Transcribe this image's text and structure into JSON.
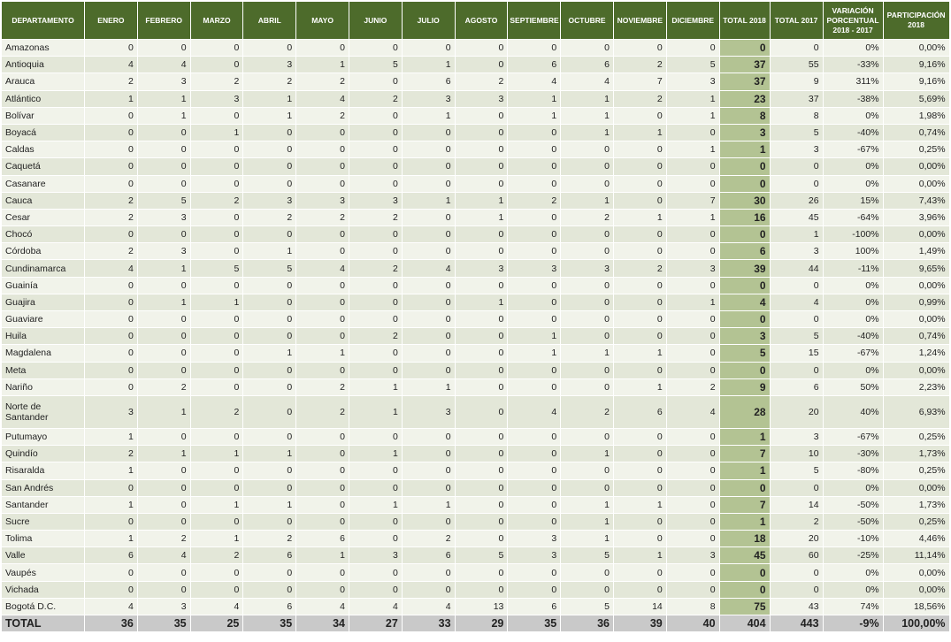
{
  "table": {
    "header": [
      "DEPARTAMENTO",
      "ENERO",
      "FEBRERO",
      "MARZO",
      "ABRIL",
      "MAYO",
      "JUNIO",
      "JULIO",
      "AGOSTO",
      "SEPTIEMBRE",
      "OCTUBRE",
      "NOVIEMBRE",
      "DICIEMBRE",
      "TOTAL 2018",
      "TOTAL 2017",
      "VARIACIÓN PORCENTUAL 2018 - 2017",
      "PARTICIPACIÓN 2018"
    ],
    "rows": [
      [
        "Amazonas",
        "0",
        "0",
        "0",
        "0",
        "0",
        "0",
        "0",
        "0",
        "0",
        "0",
        "0",
        "0",
        "0",
        "0",
        "0%",
        "0,00%"
      ],
      [
        "Antioquia",
        "4",
        "4",
        "0",
        "3",
        "1",
        "5",
        "1",
        "0",
        "6",
        "6",
        "2",
        "5",
        "37",
        "55",
        "-33%",
        "9,16%"
      ],
      [
        "Arauca",
        "2",
        "3",
        "2",
        "2",
        "2",
        "0",
        "6",
        "2",
        "4",
        "4",
        "7",
        "3",
        "37",
        "9",
        "311%",
        "9,16%"
      ],
      [
        "Atlántico",
        "1",
        "1",
        "3",
        "1",
        "4",
        "2",
        "3",
        "3",
        "1",
        "1",
        "2",
        "1",
        "23",
        "37",
        "-38%",
        "5,69%"
      ],
      [
        "Bolívar",
        "0",
        "1",
        "0",
        "1",
        "2",
        "0",
        "1",
        "0",
        "1",
        "1",
        "0",
        "1",
        "8",
        "8",
        "0%",
        "1,98%"
      ],
      [
        "Boyacá",
        "0",
        "0",
        "1",
        "0",
        "0",
        "0",
        "0",
        "0",
        "0",
        "1",
        "1",
        "0",
        "3",
        "5",
        "-40%",
        "0,74%"
      ],
      [
        "Caldas",
        "0",
        "0",
        "0",
        "0",
        "0",
        "0",
        "0",
        "0",
        "0",
        "0",
        "0",
        "1",
        "1",
        "3",
        "-67%",
        "0,25%"
      ],
      [
        "Caquetá",
        "0",
        "0",
        "0",
        "0",
        "0",
        "0",
        "0",
        "0",
        "0",
        "0",
        "0",
        "0",
        "0",
        "0",
        "0%",
        "0,00%"
      ],
      [
        "Casanare",
        "0",
        "0",
        "0",
        "0",
        "0",
        "0",
        "0",
        "0",
        "0",
        "0",
        "0",
        "0",
        "0",
        "0",
        "0%",
        "0,00%"
      ],
      [
        "Cauca",
        "2",
        "5",
        "2",
        "3",
        "3",
        "3",
        "1",
        "1",
        "2",
        "1",
        "0",
        "7",
        "30",
        "26",
        "15%",
        "7,43%"
      ],
      [
        "Cesar",
        "2",
        "3",
        "0",
        "2",
        "2",
        "2",
        "0",
        "1",
        "0",
        "2",
        "1",
        "1",
        "16",
        "45",
        "-64%",
        "3,96%"
      ],
      [
        "Chocó",
        "0",
        "0",
        "0",
        "0",
        "0",
        "0",
        "0",
        "0",
        "0",
        "0",
        "0",
        "0",
        "0",
        "1",
        "-100%",
        "0,00%"
      ],
      [
        "Córdoba",
        "2",
        "3",
        "0",
        "1",
        "0",
        "0",
        "0",
        "0",
        "0",
        "0",
        "0",
        "0",
        "6",
        "3",
        "100%",
        "1,49%"
      ],
      [
        "Cundinamarca",
        "4",
        "1",
        "5",
        "5",
        "4",
        "2",
        "4",
        "3",
        "3",
        "3",
        "2",
        "3",
        "39",
        "44",
        "-11%",
        "9,65%"
      ],
      [
        "Guainía",
        "0",
        "0",
        "0",
        "0",
        "0",
        "0",
        "0",
        "0",
        "0",
        "0",
        "0",
        "0",
        "0",
        "0",
        "0%",
        "0,00%"
      ],
      [
        "Guajira",
        "0",
        "1",
        "1",
        "0",
        "0",
        "0",
        "0",
        "1",
        "0",
        "0",
        "0",
        "1",
        "4",
        "4",
        "0%",
        "0,99%"
      ],
      [
        "Guaviare",
        "0",
        "0",
        "0",
        "0",
        "0",
        "0",
        "0",
        "0",
        "0",
        "0",
        "0",
        "0",
        "0",
        "0",
        "0%",
        "0,00%"
      ],
      [
        "Huila",
        "0",
        "0",
        "0",
        "0",
        "0",
        "2",
        "0",
        "0",
        "1",
        "0",
        "0",
        "0",
        "3",
        "5",
        "-40%",
        "0,74%"
      ],
      [
        "Magdalena",
        "0",
        "0",
        "0",
        "1",
        "1",
        "0",
        "0",
        "0",
        "1",
        "1",
        "1",
        "0",
        "5",
        "15",
        "-67%",
        "1,24%"
      ],
      [
        "Meta",
        "0",
        "0",
        "0",
        "0",
        "0",
        "0",
        "0",
        "0",
        "0",
        "0",
        "0",
        "0",
        "0",
        "0",
        "0%",
        "0,00%"
      ],
      [
        "Nariño",
        "0",
        "2",
        "0",
        "0",
        "2",
        "1",
        "1",
        "0",
        "0",
        "0",
        "1",
        "2",
        "9",
        "6",
        "50%",
        "2,23%"
      ],
      [
        "Norte de Santander",
        "3",
        "1",
        "2",
        "0",
        "2",
        "1",
        "3",
        "0",
        "4",
        "2",
        "6",
        "4",
        "28",
        "20",
        "40%",
        "6,93%"
      ],
      [
        "Putumayo",
        "1",
        "0",
        "0",
        "0",
        "0",
        "0",
        "0",
        "0",
        "0",
        "0",
        "0",
        "0",
        "1",
        "3",
        "-67%",
        "0,25%"
      ],
      [
        "Quindío",
        "2",
        "1",
        "1",
        "1",
        "0",
        "1",
        "0",
        "0",
        "0",
        "1",
        "0",
        "0",
        "7",
        "10",
        "-30%",
        "1,73%"
      ],
      [
        "Risaralda",
        "1",
        "0",
        "0",
        "0",
        "0",
        "0",
        "0",
        "0",
        "0",
        "0",
        "0",
        "0",
        "1",
        "5",
        "-80%",
        "0,25%"
      ],
      [
        "San Andrés",
        "0",
        "0",
        "0",
        "0",
        "0",
        "0",
        "0",
        "0",
        "0",
        "0",
        "0",
        "0",
        "0",
        "0",
        "0%",
        "0,00%"
      ],
      [
        "Santander",
        "1",
        "0",
        "1",
        "1",
        "0",
        "1",
        "1",
        "0",
        "0",
        "1",
        "1",
        "0",
        "7",
        "14",
        "-50%",
        "1,73%"
      ],
      [
        "Sucre",
        "0",
        "0",
        "0",
        "0",
        "0",
        "0",
        "0",
        "0",
        "0",
        "1",
        "0",
        "0",
        "1",
        "2",
        "-50%",
        "0,25%"
      ],
      [
        "Tolima",
        "1",
        "2",
        "1",
        "2",
        "6",
        "0",
        "2",
        "0",
        "3",
        "1",
        "0",
        "0",
        "18",
        "20",
        "-10%",
        "4,46%"
      ],
      [
        "Valle",
        "6",
        "4",
        "2",
        "6",
        "1",
        "3",
        "6",
        "5",
        "3",
        "5",
        "1",
        "3",
        "45",
        "60",
        "-25%",
        "11,14%"
      ],
      [
        "Vaupés",
        "0",
        "0",
        "0",
        "0",
        "0",
        "0",
        "0",
        "0",
        "0",
        "0",
        "0",
        "0",
        "0",
        "0",
        "0%",
        "0,00%"
      ],
      [
        "Vichada",
        "0",
        "0",
        "0",
        "0",
        "0",
        "0",
        "0",
        "0",
        "0",
        "0",
        "0",
        "0",
        "0",
        "0",
        "0%",
        "0,00%"
      ],
      [
        "Bogotá D.C.",
        "4",
        "3",
        "4",
        "6",
        "4",
        "4",
        "4",
        "13",
        "6",
        "5",
        "14",
        "8",
        "75",
        "43",
        "74%",
        "18,56%"
      ]
    ],
    "total": [
      "TOTAL",
      "36",
      "35",
      "25",
      "35",
      "34",
      "27",
      "33",
      "29",
      "35",
      "36",
      "39",
      "40",
      "404",
      "443",
      "-9%",
      "100,00%"
    ]
  }
}
